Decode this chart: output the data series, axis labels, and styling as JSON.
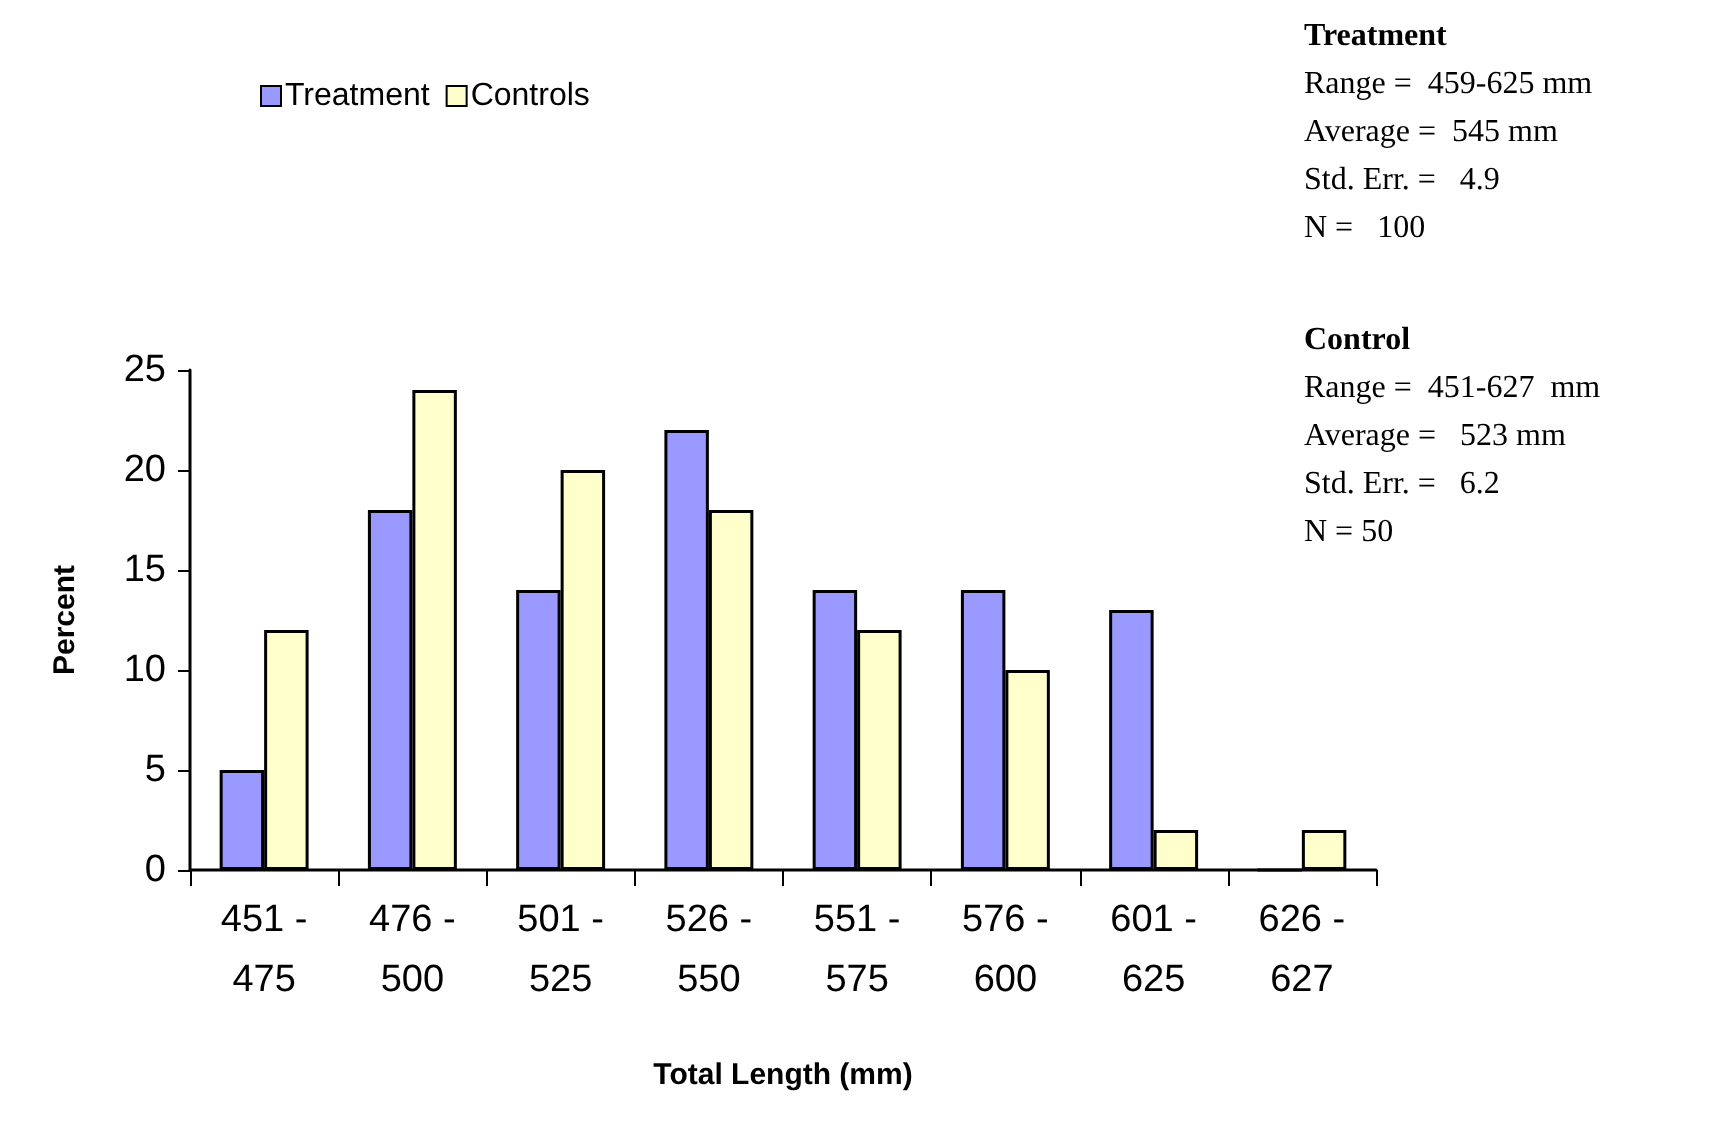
{
  "chart_data": {
    "type": "bar",
    "xlabel": "Total Length (mm)",
    "ylabel": "Percent",
    "categories": [
      "451 -\n475",
      "476 -\n500",
      "501 -\n525",
      "526 -\n550",
      "551 -\n575",
      "576 -\n600",
      "601 -\n625",
      "626 -\n627"
    ],
    "series": [
      {
        "name": "Treatment",
        "color": "#9999ff",
        "values": [
          5,
          18,
          14,
          22,
          14,
          14,
          13,
          0
        ]
      },
      {
        "name": "Controls",
        "color": "#ffffcc",
        "values": [
          12,
          24,
          20,
          18,
          12,
          10,
          2,
          2
        ]
      }
    ],
    "ylim": [
      0,
      25
    ],
    "yticks": [
      0,
      5,
      10,
      15,
      20,
      25
    ],
    "grid": false,
    "legend": "top left",
    "annotations": [
      "Treatment\nRange =  459-625 mm\nAverage =  545 mm\nStd. Err. =   4.9\nN =   100",
      "Control\nRange =  451-627  mm\nAverage =   523 mm\nStd. Err. =   6.2\nN = 50"
    ]
  }
}
